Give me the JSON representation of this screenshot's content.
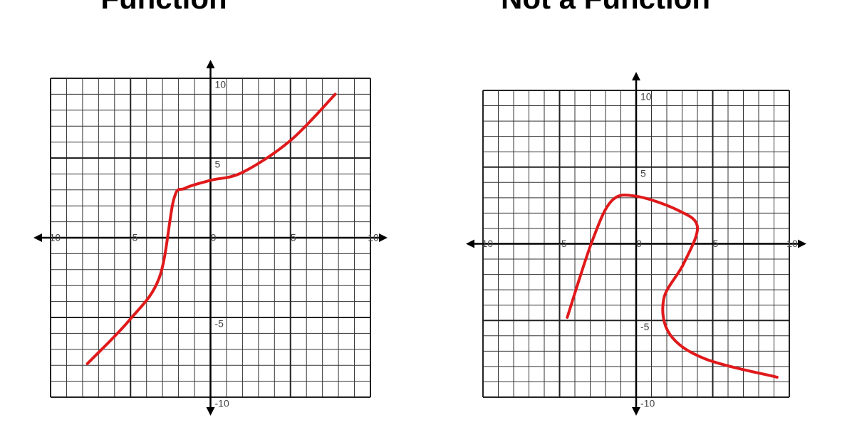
{
  "chart_data": [
    {
      "type": "line",
      "title": "Function",
      "xlim": [
        -10,
        10
      ],
      "ylim": [
        -10,
        10
      ],
      "xticks": [
        -10,
        -5,
        0,
        5,
        10
      ],
      "yticks": [
        -10,
        -5,
        5,
        10
      ],
      "grid": true,
      "series": [
        {
          "color": "#e0191b",
          "x": [
            -7.7,
            -5.1,
            -3.2,
            -2.3,
            -1.6,
            0,
            2,
            5,
            7.8
          ],
          "values": [
            -7.9,
            -5.2,
            -2.5,
            2.4,
            3.1,
            3.6,
            4.1,
            6.1,
            9.0
          ]
        }
      ]
    },
    {
      "type": "line",
      "title": "Not a Function",
      "xlim": [
        -10,
        10
      ],
      "ylim": [
        -10,
        10
      ],
      "xticks": [
        -10,
        -5,
        0,
        5,
        10
      ],
      "yticks": [
        -10,
        -5,
        5,
        10
      ],
      "grid": true,
      "series": [
        {
          "color": "#e0191b",
          "x": [
            -4.5,
            -2.9,
            -1.6,
            0,
            2.7,
            4.0,
            3.1,
            1.8,
            2.2,
            4.5,
            9.2
          ],
          "values": [
            -4.8,
            0.1,
            2.8,
            3.1,
            2.2,
            1.1,
            -1.3,
            -3.6,
            -5.9,
            -7.5,
            -8.7
          ]
        }
      ]
    }
  ]
}
